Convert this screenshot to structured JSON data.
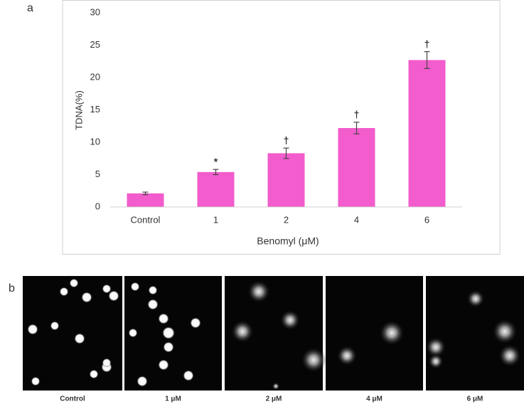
{
  "panel_labels": [
    "a",
    "b"
  ],
  "chart_data": {
    "type": "bar",
    "x_label": "Benomyl (μM)",
    "y_label": "TDNA(%)",
    "categories": [
      "Control",
      "1",
      "2",
      "4",
      "6"
    ],
    "series": [
      {
        "name": "TDNA",
        "color": "#f25ccc",
        "values": [
          2.1,
          5.4,
          8.3,
          12.2,
          22.7
        ],
        "errors": [
          0.2,
          0.4,
          0.8,
          0.9,
          1.3
        ]
      }
    ],
    "annotations": [
      null,
      "*",
      "†",
      "†",
      "†"
    ],
    "ylim": [
      0,
      30
    ],
    "yticks": [
      0,
      5,
      10,
      15,
      20,
      25,
      30
    ],
    "grid": false
  },
  "images": {
    "labels": [
      "Control",
      "1 μM",
      "2 μM",
      "4 μM",
      "6 μM"
    ]
  }
}
